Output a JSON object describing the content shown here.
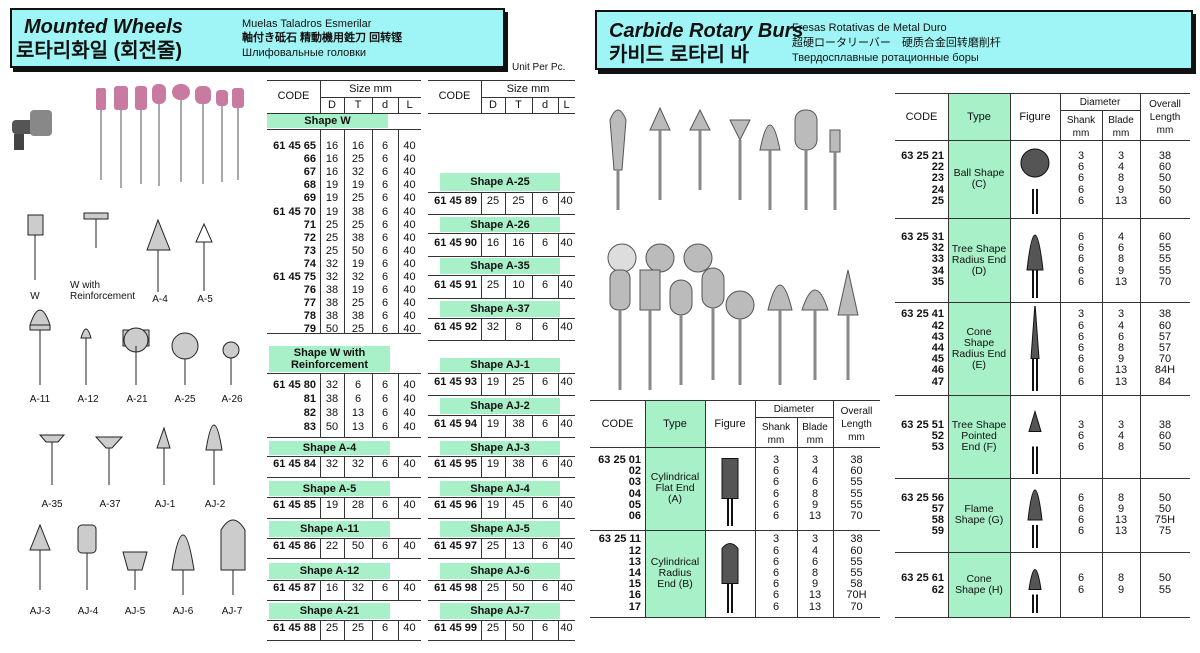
{
  "mounted_wheels": {
    "title_en": "Mounted Wheels",
    "title_ko": "로타리화일 (회전줄)",
    "sub_es": "Muelas Taladros Esmerilar",
    "sub_ja": "軸付き砥石 精動機用鉎刀 回转铿",
    "sub_ru": "Шлифовальные головки",
    "unit_note": "Unit Per Pc.",
    "header": {
      "code": "CODE",
      "size": "Size mm",
      "cols": [
        "D",
        "T",
        "d",
        "L"
      ]
    },
    "shape_labels": [
      "W",
      "W with Reinforcement",
      "A-4",
      "A-5",
      "A-11",
      "A-12",
      "A-21",
      "A-25",
      "A-26",
      "A-35",
      "A-37",
      "AJ-1",
      "AJ-2",
      "AJ-3",
      "AJ-4",
      "AJ-5",
      "AJ-6",
      "AJ-7"
    ],
    "tables": [
      {
        "sections": [
          {
            "shape": "Shape W",
            "rows": [
              {
                "code": "61 45 65",
                "D": "16",
                "T": "16",
                "d": "6",
                "L": "40"
              },
              {
                "code": "66",
                "D": "16",
                "T": "25",
                "d": "6",
                "L": "40"
              },
              {
                "code": "67",
                "D": "16",
                "T": "32",
                "d": "6",
                "L": "40"
              },
              {
                "code": "68",
                "D": "19",
                "T": "19",
                "d": "6",
                "L": "40"
              },
              {
                "code": "69",
                "D": "19",
                "T": "25",
                "d": "6",
                "L": "40"
              },
              {
                "code": "61 45 70",
                "D": "19",
                "T": "38",
                "d": "6",
                "L": "40"
              },
              {
                "code": "71",
                "D": "25",
                "T": "25",
                "d": "6",
                "L": "40"
              },
              {
                "code": "72",
                "D": "25",
                "T": "38",
                "d": "6",
                "L": "40"
              },
              {
                "code": "73",
                "D": "25",
                "T": "50",
                "d": "6",
                "L": "40"
              },
              {
                "code": "74",
                "D": "32",
                "T": "19",
                "d": "6",
                "L": "40"
              },
              {
                "code": "61 45 75",
                "D": "32",
                "T": "32",
                "d": "6",
                "L": "40"
              },
              {
                "code": "76",
                "D": "38",
                "T": "19",
                "d": "6",
                "L": "40"
              },
              {
                "code": "77",
                "D": "38",
                "T": "25",
                "d": "6",
                "L": "40"
              },
              {
                "code": "78",
                "D": "38",
                "T": "38",
                "d": "6",
                "L": "40"
              },
              {
                "code": "79",
                "D": "50",
                "T": "25",
                "d": "6",
                "L": "40"
              }
            ]
          },
          {
            "shape": "Shape W with Reinforcement",
            "rows": [
              {
                "code": "61 45 80",
                "D": "32",
                "T": "6",
                "d": "6",
                "L": "40"
              },
              {
                "code": "81",
                "D": "38",
                "T": "6",
                "d": "6",
                "L": "40"
              },
              {
                "code": "82",
                "D": "38",
                "T": "13",
                "d": "6",
                "L": "40"
              },
              {
                "code": "83",
                "D": "50",
                "T": "13",
                "d": "6",
                "L": "40"
              }
            ]
          },
          {
            "shape": "Shape A-4",
            "rows": [
              {
                "code": "61 45 84",
                "D": "32",
                "T": "32",
                "d": "6",
                "L": "40"
              }
            ]
          },
          {
            "shape": "Shape A-5",
            "rows": [
              {
                "code": "61 45 85",
                "D": "19",
                "T": "28",
                "d": "6",
                "L": "40"
              }
            ]
          },
          {
            "shape": "Shape A-11",
            "rows": [
              {
                "code": "61 45 86",
                "D": "22",
                "T": "50",
                "d": "6",
                "L": "40"
              }
            ]
          },
          {
            "shape": "Shape A-12",
            "rows": [
              {
                "code": "61 45 87",
                "D": "16",
                "T": "32",
                "d": "6",
                "L": "40"
              }
            ]
          },
          {
            "shape": "Shape A-21",
            "rows": [
              {
                "code": "61 45 88",
                "D": "25",
                "T": "25",
                "d": "6",
                "L": "40"
              }
            ]
          }
        ]
      },
      {
        "sections": [
          {
            "shape": "Shape A-25",
            "rows": [
              {
                "code": "61 45 89",
                "D": "25",
                "T": "25",
                "d": "6",
                "L": "40"
              }
            ]
          },
          {
            "shape": "Shape A-26",
            "rows": [
              {
                "code": "61 45 90",
                "D": "16",
                "T": "16",
                "d": "6",
                "L": "40"
              }
            ]
          },
          {
            "shape": "Shape A-35",
            "rows": [
              {
                "code": "61 45 91",
                "D": "25",
                "T": "10",
                "d": "6",
                "L": "40"
              }
            ]
          },
          {
            "shape": "Shape A-37",
            "rows": [
              {
                "code": "61 45 92",
                "D": "32",
                "T": "8",
                "d": "6",
                "L": "40"
              }
            ]
          },
          {
            "shape": "Shape AJ-1",
            "rows": [
              {
                "code": "61 45 93",
                "D": "19",
                "T": "25",
                "d": "6",
                "L": "40"
              }
            ]
          },
          {
            "shape": "Shape AJ-2",
            "rows": [
              {
                "code": "61 45 94",
                "D": "19",
                "T": "38",
                "d": "6",
                "L": "40"
              }
            ]
          },
          {
            "shape": "Shape AJ-3",
            "rows": [
              {
                "code": "61 45 95",
                "D": "19",
                "T": "38",
                "d": "6",
                "L": "40"
              }
            ]
          },
          {
            "shape": "Shape AJ-4",
            "rows": [
              {
                "code": "61 45 96",
                "D": "19",
                "T": "45",
                "d": "6",
                "L": "40"
              }
            ]
          },
          {
            "shape": "Shape AJ-5",
            "rows": [
              {
                "code": "61 45 97",
                "D": "25",
                "T": "13",
                "d": "6",
                "L": "40"
              }
            ]
          },
          {
            "shape": "Shape AJ-6",
            "rows": [
              {
                "code": "61 45 98",
                "D": "25",
                "T": "50",
                "d": "6",
                "L": "40"
              }
            ]
          },
          {
            "shape": "Shape AJ-7",
            "rows": [
              {
                "code": "61 45 99",
                "D": "25",
                "T": "50",
                "d": "6",
                "L": "40"
              }
            ]
          }
        ]
      }
    ]
  },
  "carbide_burs": {
    "title_en": "Carbide Rotary Burs",
    "title_ko": "카비드 로타리 바",
    "sub_es": "Fresas Rotativas de Metal Duro",
    "sub_ja": "超硬ロータリーバー　硬质合金回转磨削杆",
    "sub_ru": "Твердосплавные ротационные боры",
    "header": {
      "code": "CODE",
      "type": "Type",
      "figure": "Figure",
      "diameter": "Diameter",
      "shank": "Shank mm",
      "blade": "Blade mm",
      "overall": "Overall Length mm"
    },
    "tables": [
      {
        "groups": [
          {
            "type": "Cylindrical Flat End (A)",
            "codes": [
              "63 25 01",
              "02",
              "03",
              "04",
              "05",
              "06"
            ],
            "shank": [
              "3",
              "6",
              "6",
              "6",
              "6",
              "6"
            ],
            "blade": [
              "3",
              "4",
              "6",
              "8",
              "9",
              "13"
            ],
            "length": [
              "38",
              "60",
              "55",
              "55",
              "55",
              "70"
            ]
          },
          {
            "type": "Cylindrical Radius End (B)",
            "codes": [
              "63 25 11",
              "12",
              "13",
              "14",
              "15",
              "16",
              "17"
            ],
            "shank": [
              "3",
              "6",
              "6",
              "6",
              "6",
              "6",
              "6"
            ],
            "blade": [
              "3",
              "4",
              "6",
              "8",
              "9",
              "13",
              "13"
            ],
            "length": [
              "38",
              "60",
              "55",
              "55",
              "58",
              "70H",
              "70"
            ]
          }
        ]
      },
      {
        "groups": [
          {
            "type": "Ball Shape (C)",
            "codes": [
              "63 25 21",
              "22",
              "23",
              "24",
              "25"
            ],
            "shank": [
              "3",
              "6",
              "6",
              "6",
              "6"
            ],
            "blade": [
              "3",
              "4",
              "8",
              "9",
              "13"
            ],
            "length": [
              "38",
              "60",
              "50",
              "50",
              "60"
            ]
          },
          {
            "type": "Tree Shape Radius End (D)",
            "codes": [
              "63 25 31",
              "32",
              "33",
              "34",
              "35"
            ],
            "shank": [
              "6",
              "6",
              "6",
              "6",
              "6"
            ],
            "blade": [
              "4",
              "6",
              "8",
              "9",
              "13"
            ],
            "length": [
              "60",
              "55",
              "55",
              "55",
              "70"
            ]
          },
          {
            "type": "Cone Shape Radius End (E)",
            "codes": [
              "63 25 41",
              "42",
              "43",
              "44",
              "45",
              "46",
              "47"
            ],
            "shank": [
              "3",
              "6",
              "6",
              "6",
              "6",
              "6",
              "6"
            ],
            "blade": [
              "3",
              "4",
              "6",
              "8",
              "9",
              "13",
              "13"
            ],
            "length": [
              "38",
              "60",
              "57",
              "57",
              "70",
              "84H",
              "84"
            ]
          },
          {
            "type": "Tree Shape Pointed End (F)",
            "codes": [
              "63 25 51",
              "52",
              "53"
            ],
            "shank": [
              "3",
              "6",
              "6"
            ],
            "blade": [
              "3",
              "4",
              "8"
            ],
            "length": [
              "38",
              "60",
              "50"
            ]
          },
          {
            "type": "Flame Shape (G)",
            "codes": [
              "63 25 56",
              "57",
              "58",
              "59"
            ],
            "shank": [
              "6",
              "6",
              "6",
              "6"
            ],
            "blade": [
              "8",
              "9",
              "13",
              "13"
            ],
            "length": [
              "50",
              "50",
              "75H",
              "75"
            ]
          },
          {
            "type": "Cone Shape (H)",
            "codes": [
              "63 25 61",
              "62"
            ],
            "shank": [
              "6",
              "6"
            ],
            "blade": [
              "8",
              "9"
            ],
            "length": [
              "50",
              "55"
            ]
          }
        ]
      }
    ]
  },
  "colors": {
    "header_box": "#9ff5f5",
    "band": "#a8f0c8"
  }
}
